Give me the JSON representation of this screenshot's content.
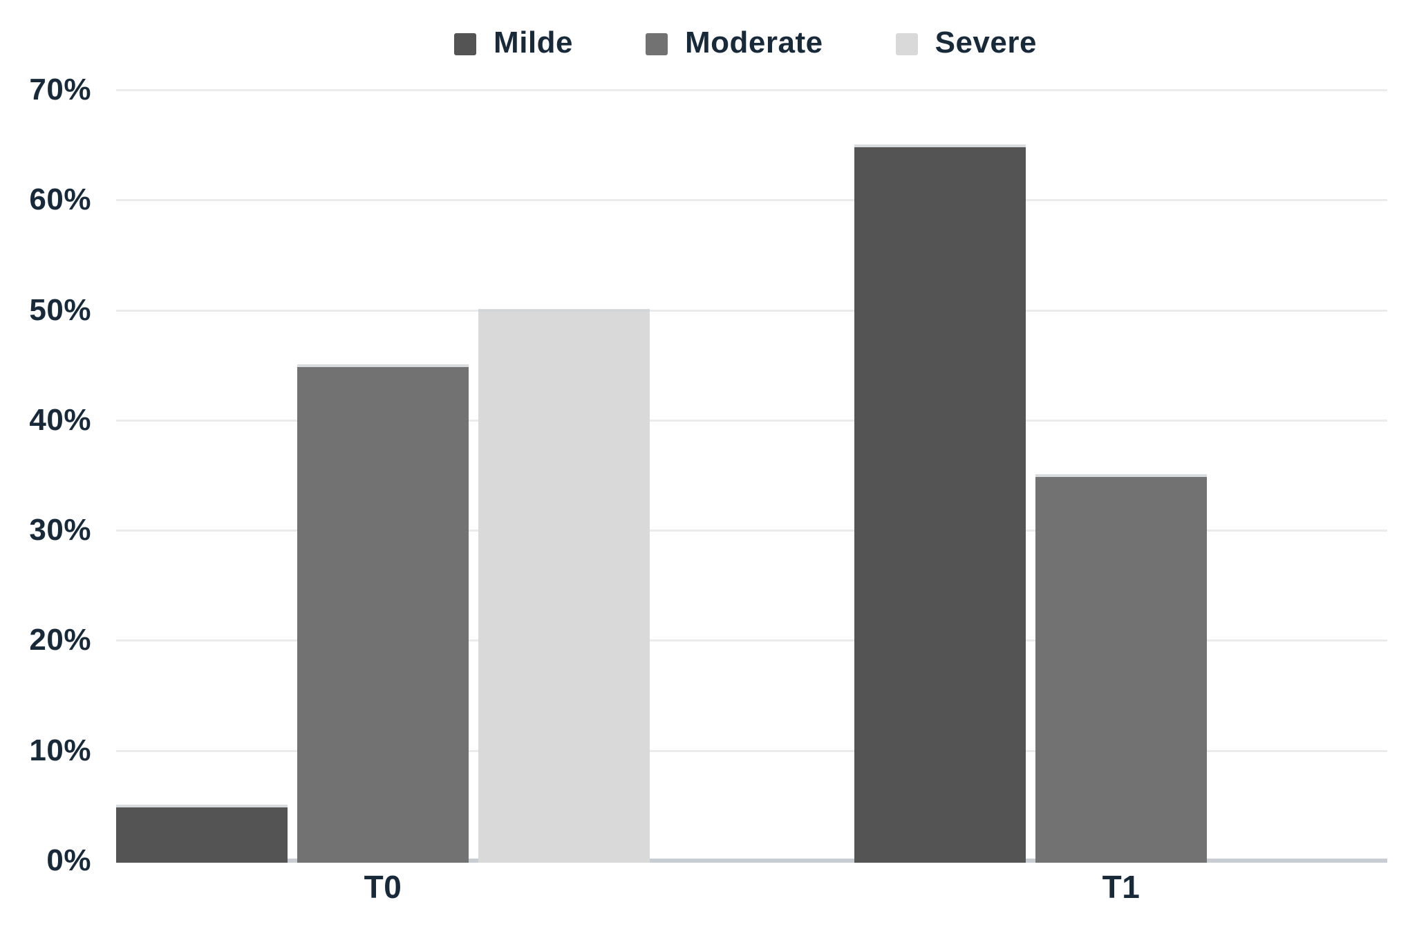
{
  "chart_data": {
    "type": "bar",
    "title": "",
    "categories": [
      "T0",
      "T1"
    ],
    "series": [
      {
        "name": "Milde",
        "color": "#545454",
        "values": [
          5,
          65
        ]
      },
      {
        "name": "Moderate",
        "color": "#727272",
        "values": [
          45,
          35
        ]
      },
      {
        "name": "Severe",
        "color": "#d9d9d9",
        "values": [
          50,
          0
        ]
      }
    ],
    "xlabel": "",
    "ylabel": "",
    "ylim": [
      0,
      70
    ],
    "y_tick_values": [
      0,
      10,
      20,
      30,
      40,
      50,
      60,
      70
    ],
    "y_ticks": [
      "0%",
      "10%",
      "20%",
      "30%",
      "40%",
      "50%",
      "60%",
      "70%"
    ],
    "grid": true,
    "legend_position": "top"
  },
  "colors": {
    "background": "#ffffff",
    "text": "#18293a",
    "gridline": "#e9ebec",
    "axis_line": "#c7cdd3"
  }
}
